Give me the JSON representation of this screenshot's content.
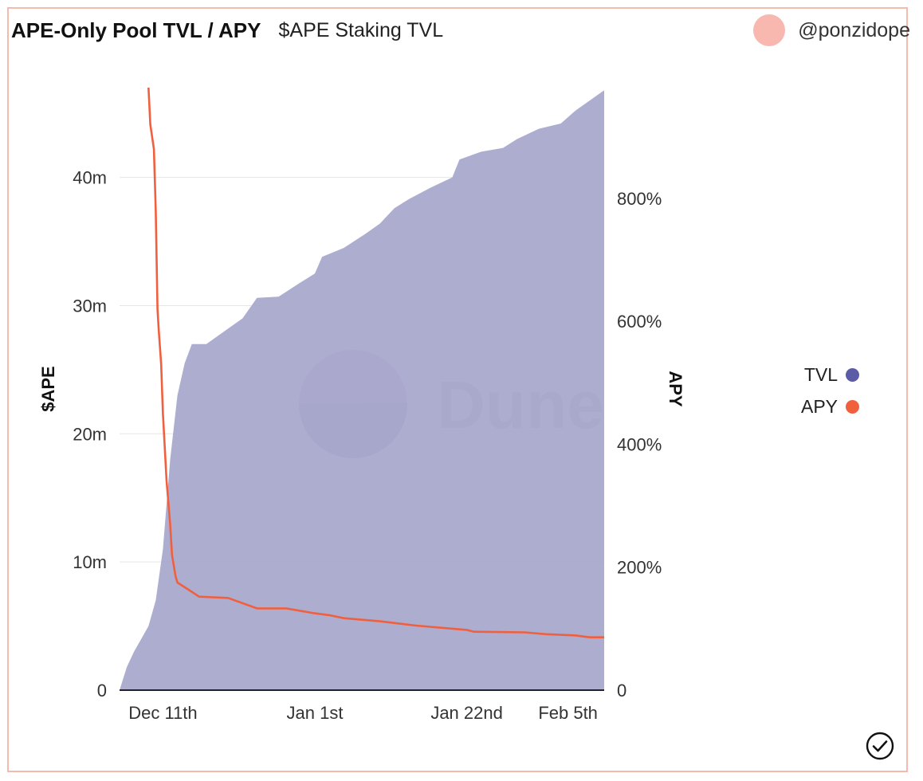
{
  "header": {
    "title": "APE-Only Pool TVL / APY",
    "subtitle": "$APE Staking TVL",
    "author": "@ponzidope"
  },
  "watermark": {
    "text": "Dune"
  },
  "colors": {
    "tvl": "#5b5ba8",
    "tvl_fill": "#a9a9cc",
    "apy": "#f0603f",
    "border": "#f6b9b0",
    "avatar": "#f8b8af",
    "grid": "#e6e6e6"
  },
  "icons": {
    "status": "check-circle-icon"
  },
  "chart_data": {
    "type": "area",
    "x_start": "2022-12-05",
    "x_end": "2023-02-10",
    "x_ticks": [
      {
        "date": "2022-12-11",
        "label": "Dec 11th"
      },
      {
        "date": "2023-01-01",
        "label": "Jan 1st"
      },
      {
        "date": "2023-01-22",
        "label": "Jan 22nd"
      },
      {
        "date": "2023-02-05",
        "label": "Feb 5th"
      }
    ],
    "y_left": {
      "label": "$APE",
      "range": [
        0,
        47000000
      ],
      "ticks": [
        {
          "v": 0,
          "label": "0"
        },
        {
          "v": 10000000,
          "label": "10m"
        },
        {
          "v": 20000000,
          "label": "20m"
        },
        {
          "v": 30000000,
          "label": "30m"
        },
        {
          "v": 40000000,
          "label": "40m"
        }
      ]
    },
    "y_right": {
      "label": "APY",
      "range": [
        0,
        9.8
      ],
      "ticks": [
        {
          "v": 0,
          "label": "0"
        },
        {
          "v": 2,
          "label": "200%"
        },
        {
          "v": 4,
          "label": "400%"
        },
        {
          "v": 6,
          "label": "600%"
        },
        {
          "v": 8,
          "label": "800%"
        }
      ]
    },
    "grid": true,
    "legend_position": "right",
    "series": [
      {
        "name": "TVL",
        "type": "area",
        "axis": "left",
        "points": [
          [
            "2022-12-05",
            0
          ],
          [
            "2022-12-06",
            1800000
          ],
          [
            "2022-12-07",
            3000000
          ],
          [
            "2022-12-08",
            4000000
          ],
          [
            "2022-12-09",
            5000000
          ],
          [
            "2022-12-10",
            7000000
          ],
          [
            "2022-12-11",
            11000000
          ],
          [
            "2022-12-12",
            18000000
          ],
          [
            "2022-12-13",
            23000000
          ],
          [
            "2022-12-14",
            25500000
          ],
          [
            "2022-12-15",
            27000000
          ],
          [
            "2022-12-17",
            27000000
          ],
          [
            "2022-12-20",
            28200000
          ],
          [
            "2022-12-22",
            29000000
          ],
          [
            "2022-12-24",
            30600000
          ],
          [
            "2022-12-27",
            30700000
          ],
          [
            "2022-12-30",
            31800000
          ],
          [
            "2023-01-01",
            32500000
          ],
          [
            "2023-01-02",
            33800000
          ],
          [
            "2023-01-05",
            34500000
          ],
          [
            "2023-01-08",
            35600000
          ],
          [
            "2023-01-10",
            36400000
          ],
          [
            "2023-01-12",
            37600000
          ],
          [
            "2023-01-14",
            38300000
          ],
          [
            "2023-01-17",
            39200000
          ],
          [
            "2023-01-20",
            40000000
          ],
          [
            "2023-01-21",
            41400000
          ],
          [
            "2023-01-24",
            42000000
          ],
          [
            "2023-01-27",
            42300000
          ],
          [
            "2023-01-29",
            43000000
          ],
          [
            "2023-02-01",
            43800000
          ],
          [
            "2023-02-04",
            44200000
          ],
          [
            "2023-02-06",
            45200000
          ],
          [
            "2023-02-08",
            46000000
          ],
          [
            "2023-02-10",
            46800000
          ]
        ]
      },
      {
        "name": "APY",
        "type": "line",
        "axis": "right",
        "points": [
          [
            "2022-12-09",
            9.8
          ],
          [
            "2022-12-09T06",
            9.2
          ],
          [
            "2022-12-09T18",
            8.8
          ],
          [
            "2022-12-10",
            7.8
          ],
          [
            "2022-12-10T06",
            6.2
          ],
          [
            "2022-12-10T10",
            5.85
          ],
          [
            "2022-12-10T18",
            5.3
          ],
          [
            "2022-12-11",
            4.5
          ],
          [
            "2022-12-11T12",
            3.4
          ],
          [
            "2022-12-12",
            2.7
          ],
          [
            "2022-12-12T06",
            2.2
          ],
          [
            "2022-12-12T18",
            1.85
          ],
          [
            "2022-12-13",
            1.75
          ],
          [
            "2022-12-15",
            1.6
          ],
          [
            "2022-12-16",
            1.52
          ],
          [
            "2022-12-20",
            1.5
          ],
          [
            "2022-12-24",
            1.33
          ],
          [
            "2022-12-28",
            1.33
          ],
          [
            "2023-01-01",
            1.25
          ],
          [
            "2023-01-03",
            1.22
          ],
          [
            "2023-01-05",
            1.17
          ],
          [
            "2023-01-10",
            1.12
          ],
          [
            "2023-01-15",
            1.05
          ],
          [
            "2023-01-22",
            0.98
          ],
          [
            "2023-01-23",
            0.95
          ],
          [
            "2023-01-30",
            0.94
          ],
          [
            "2023-02-02",
            0.91
          ],
          [
            "2023-02-06",
            0.89
          ],
          [
            "2023-02-08",
            0.86
          ],
          [
            "2023-02-10",
            0.86
          ]
        ]
      }
    ]
  }
}
